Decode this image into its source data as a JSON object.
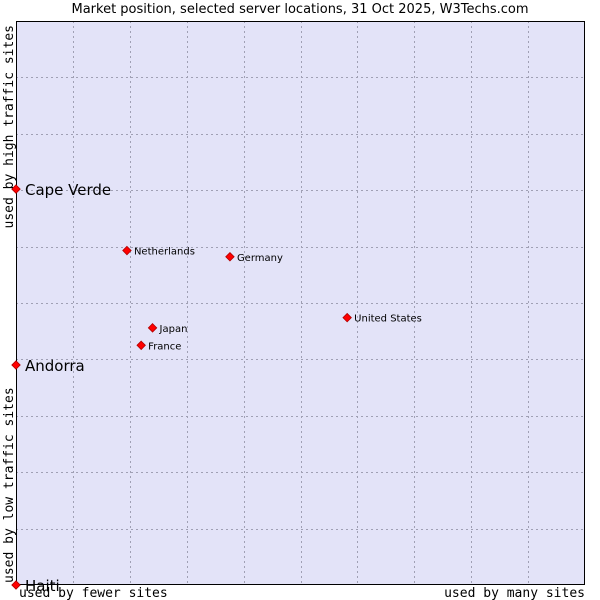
{
  "chart_data": {
    "type": "scatter",
    "title": "Market position, selected server locations, 31 Oct 2025, W3Techs.com",
    "xlabel_left": "used by fewer sites",
    "xlabel_right": "used by many sites",
    "ylabel_bottom": "used by low traffic sites",
    "ylabel_top": "used by high traffic sites",
    "xlim": [
      0,
      100
    ],
    "ylim": [
      0,
      100
    ],
    "grid": true,
    "colors": {
      "plot_background": "#e3e3f8",
      "grid": "#a0a0b4",
      "border": "#000000",
      "marker": "#ff0000",
      "marker_stroke": "#b00000",
      "text": "#000000"
    },
    "points": [
      {
        "label": "Cape Verde",
        "x": 0,
        "y": 70.2,
        "emphasis": true
      },
      {
        "label": "Netherlands",
        "x": 19.5,
        "y": 59.3,
        "emphasis": false
      },
      {
        "label": "Germany",
        "x": 37.6,
        "y": 58.2,
        "emphasis": false
      },
      {
        "label": "United States",
        "x": 58.2,
        "y": 47.4,
        "emphasis": false
      },
      {
        "label": "Japan",
        "x": 24.0,
        "y": 45.6,
        "emphasis": false
      },
      {
        "label": "France",
        "x": 22.0,
        "y": 42.5,
        "emphasis": false
      },
      {
        "label": "Andorra",
        "x": 0,
        "y": 39.0,
        "emphasis": true
      },
      {
        "label": "Haiti",
        "x": 0,
        "y": 0,
        "emphasis": true
      }
    ]
  }
}
